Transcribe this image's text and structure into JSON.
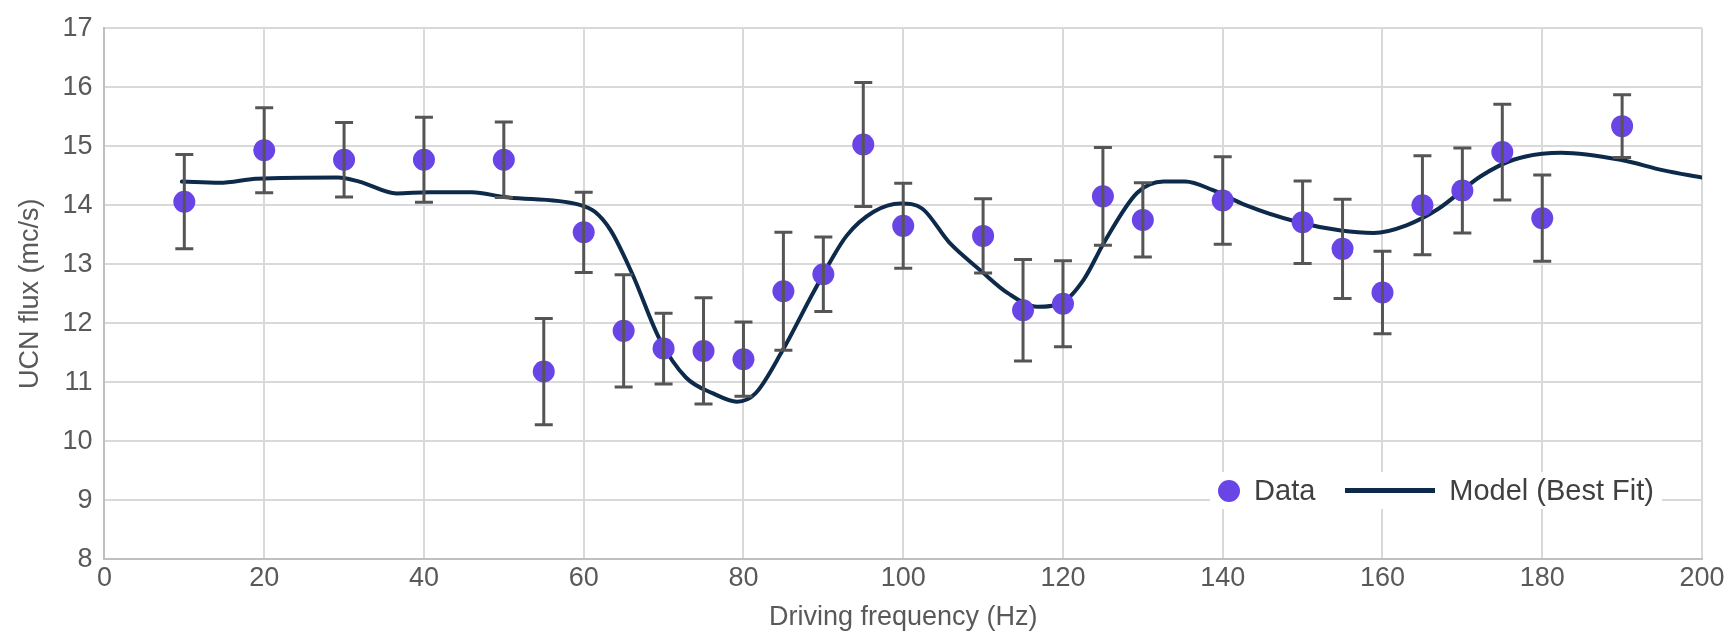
{
  "chart_data": {
    "type": "scatter",
    "xlabel": "Driving frequency (Hz)",
    "ylabel": "UCN flux (mc/s)",
    "xlim": [
      0,
      200
    ],
    "xticks": [
      0,
      20,
      40,
      60,
      80,
      100,
      120,
      140,
      160,
      180,
      200
    ],
    "ylim": [
      8,
      17
    ],
    "yticks": [
      8,
      9,
      10,
      11,
      12,
      13,
      14,
      15,
      16,
      17
    ],
    "grid": true,
    "legend": "bottom right",
    "marker": "circle",
    "series": [
      {
        "name": "Data",
        "color": "#6a45e6",
        "x": [
          10,
          20,
          30,
          40,
          50,
          55,
          60,
          65,
          70,
          75,
          80,
          85,
          90,
          95,
          100,
          110,
          115,
          120,
          125,
          130,
          140,
          150,
          155,
          160,
          165,
          170,
          175,
          180,
          190
        ],
        "values": [
          14.06,
          14.93,
          14.77,
          14.77,
          14.77,
          11.18,
          13.54,
          11.87,
          11.57,
          11.53,
          11.39,
          12.54,
          12.83,
          15.03,
          13.65,
          13.48,
          12.22,
          12.33,
          14.15,
          13.75,
          14.08,
          13.71,
          13.26,
          12.52,
          14.0,
          14.25,
          14.9,
          13.78,
          15.34
        ],
        "errors": [
          0.8,
          0.72,
          0.63,
          0.72,
          0.64,
          0.9,
          0.68,
          0.95,
          0.6,
          0.9,
          0.63,
          1.0,
          0.63,
          1.05,
          0.72,
          0.63,
          0.86,
          0.73,
          0.83,
          0.63,
          0.74,
          0.7,
          0.84,
          0.7,
          0.84,
          0.72,
          0.81,
          0.73,
          0.53
        ]
      },
      {
        "name": "Model (Best Fit)",
        "type": "line",
        "color": "#0d2a4a",
        "line_style": "solid",
        "marker": "none",
        "x": [
          9.7,
          14.4,
          19.1,
          29.2,
          31.9,
          36.6,
          40.6,
          46,
          50,
          59.4,
          61.4,
          63.4,
          66.1,
          69.5,
          72.8,
          76.2,
          79.2,
          81.5,
          84.9,
          88.9,
          92.9,
          96.3,
          99.7,
          102.4,
          105.7,
          109.8,
          113.1,
          116.8,
          119.9,
          122.6,
          125.2,
          129.3,
          132.6,
          135.3,
          138.7,
          142.7,
          149.5,
          154.8,
          158.9,
          163,
          167,
          172.3,
          176.4,
          182.4,
          189.8,
          195.2,
          200
        ],
        "values": [
          14.4,
          14.38,
          14.45,
          14.47,
          14.4,
          14.2,
          14.22,
          14.22,
          14.14,
          14.01,
          13.89,
          13.57,
          12.83,
          11.73,
          11.08,
          10.81,
          10.67,
          10.81,
          11.54,
          12.56,
          13.48,
          13.89,
          14.03,
          13.94,
          13.38,
          12.88,
          12.51,
          12.28,
          12.35,
          12.74,
          13.38,
          14.21,
          14.4,
          14.4,
          14.26,
          14.01,
          13.71,
          13.57,
          13.53,
          13.66,
          13.94,
          14.49,
          14.77,
          14.89,
          14.77,
          14.59,
          14.47
        ]
      }
    ]
  }
}
